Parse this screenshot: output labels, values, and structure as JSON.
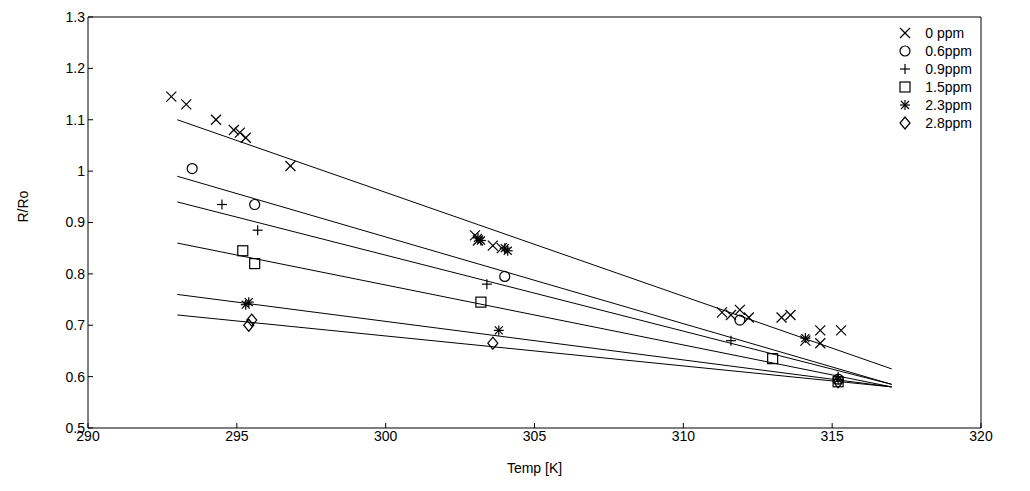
{
  "chart_data": {
    "type": "scatter",
    "x_label": "Temp [K]",
    "y_label": "R/Ro",
    "xlim": [
      290,
      320
    ],
    "ylim": [
      0.5,
      1.3
    ],
    "xticks": [
      290,
      295,
      300,
      305,
      310,
      315,
      320
    ],
    "yticks": [
      0.5,
      0.6,
      0.7,
      0.8,
      0.9,
      1,
      1.1,
      1.2,
      1.3
    ],
    "grid": false,
    "legend": "upper right",
    "series": [
      {
        "name": "0 ppm",
        "color": "#000000",
        "marker": "x",
        "x": [
          292.8,
          293.3,
          294.3,
          294.9,
          295.1,
          295.3,
          296.8,
          303.0,
          303.1,
          303.6,
          303.9,
          311.3,
          311.6,
          311.9,
          312.2,
          313.3,
          313.6,
          314.1,
          314.6,
          314.6,
          315.3
        ],
        "values": [
          1.145,
          1.13,
          1.1,
          1.08,
          1.075,
          1.065,
          1.01,
          0.875,
          0.865,
          0.855,
          0.85,
          0.725,
          0.72,
          0.73,
          0.715,
          0.715,
          0.72,
          0.67,
          0.69,
          0.665,
          0.69
        ],
        "fit": {
          "x": [
            293,
            317
          ],
          "values": [
            1.1,
            0.615
          ]
        }
      },
      {
        "name": "0.6ppm",
        "color": "#000000",
        "marker": "circle",
        "x": [
          293.5,
          295.6,
          304.0,
          311.9,
          315.2
        ],
        "values": [
          1.005,
          0.935,
          0.795,
          0.71,
          0.595
        ],
        "fit": {
          "x": [
            293,
            317
          ],
          "values": [
            0.99,
            0.585
          ]
        }
      },
      {
        "name": "0.9ppm",
        "color": "#000000",
        "marker": "plus",
        "x": [
          294.5,
          295.7,
          303.4,
          311.6,
          315.2
        ],
        "values": [
          0.935,
          0.885,
          0.78,
          0.67,
          0.6
        ],
        "fit": {
          "x": [
            293,
            317
          ],
          "values": [
            0.94,
            0.585
          ]
        }
      },
      {
        "name": "1.5ppm",
        "color": "#000000",
        "marker": "square",
        "x": [
          295.2,
          295.6,
          303.2,
          313.0,
          315.2
        ],
        "values": [
          0.845,
          0.82,
          0.745,
          0.635,
          0.59
        ],
        "fit": {
          "x": [
            293,
            317
          ],
          "values": [
            0.86,
            0.58
          ]
        }
      },
      {
        "name": "2.3ppm",
        "color": "#000000",
        "marker": "asterisk",
        "x": [
          295.3,
          295.4,
          303.1,
          303.2,
          304.0,
          304.1,
          303.8,
          314.1,
          315.2
        ],
        "values": [
          0.74,
          0.745,
          0.87,
          0.865,
          0.85,
          0.845,
          0.69,
          0.675,
          0.595
        ],
        "fit": {
          "x": [
            293,
            317
          ],
          "values": [
            0.76,
            0.58
          ]
        }
      },
      {
        "name": "2.8ppm",
        "color": "#000000",
        "marker": "diamond",
        "x": [
          295.4,
          295.5,
          303.6,
          315.2
        ],
        "values": [
          0.7,
          0.71,
          0.665,
          0.59
        ],
        "fit": {
          "x": [
            293,
            317
          ],
          "values": [
            0.72,
            0.58
          ]
        }
      }
    ]
  }
}
